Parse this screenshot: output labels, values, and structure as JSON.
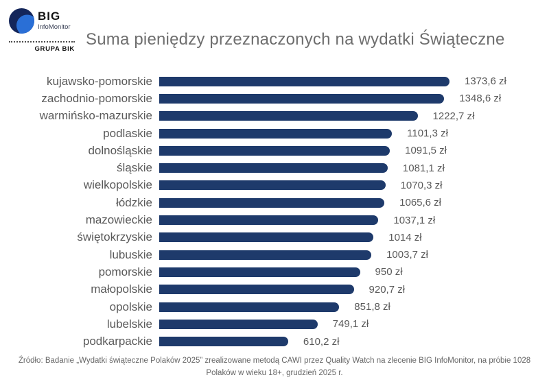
{
  "header": {
    "logo": {
      "brand": "BIG",
      "sub_brand": "InfoMonitor",
      "group": "GRUPA BIK",
      "icon": "big-infomonitor-circle-icon",
      "icon_dark_color": "#14265a",
      "icon_light_color": "#2a6fd6"
    },
    "title": "Suma pieniędzy przeznaczonych na wydatki Świąteczne"
  },
  "chart_data": {
    "type": "bar",
    "orientation": "horizontal",
    "title": "Suma pieniędzy przeznaczonych na wydatki Świąteczne",
    "unit": "zł",
    "bar_color": "#1e3a6b",
    "xlim": [
      0,
      1400
    ],
    "grid": false,
    "legend": "none",
    "categories": [
      "kujawsko-pomorskie",
      "zachodnio-pomorskie",
      "warmińsko-mazurskie",
      "podlaskie",
      "dolnośląskie",
      "śląskie",
      "wielkopolskie",
      "łódzkie",
      "mazowieckie",
      "świętokrzyskie",
      "lubuskie",
      "pomorskie",
      "małopolskie",
      "opolskie",
      "lubelskie",
      "podkarpackie"
    ],
    "values": [
      1373.6,
      1348.6,
      1222.7,
      1101.3,
      1091.5,
      1081.1,
      1070.3,
      1065.6,
      1037.1,
      1014,
      1003.7,
      950,
      920.7,
      851.8,
      749.1,
      610.2
    ],
    "value_labels": [
      "1373,6 zł",
      "1348,6 zł",
      "1222,7 zł",
      "1101,3 zł",
      "1091,5 zł",
      "1081,1 zł",
      "1070,3 zł",
      "1065,6 zł",
      "1037,1 zł",
      "1014 zł",
      "1003,7 zł",
      "950 zł",
      "920,7 zł",
      "851,8 zł",
      "749,1 zł",
      "610,2 zł"
    ]
  },
  "footer": {
    "source": "Źródło: Badanie „Wydatki świąteczne Polaków 2025” zrealizowane metodą CAWI przez Quality Watch na zlecenie BIG InfoMonitor, na próbie 1028 Polaków w wieku 18+, grudzień 2025 r."
  }
}
